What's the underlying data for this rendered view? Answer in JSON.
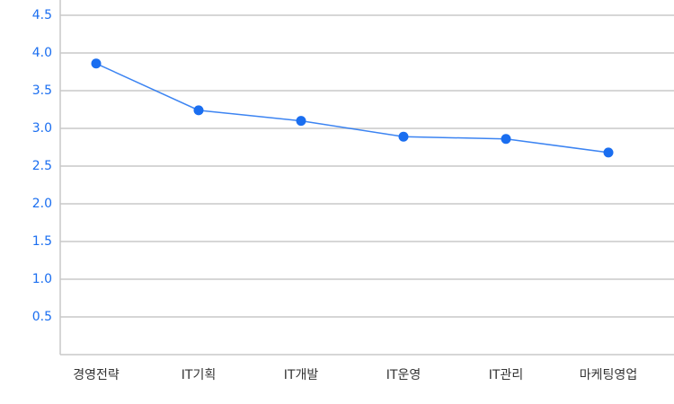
{
  "chart_data": {
    "type": "line",
    "categories": [
      "경영전략",
      "IT기획",
      "IT개발",
      "IT운영",
      "IT관리",
      "마케팅영업"
    ],
    "series": [
      {
        "color": "#1a6ef0",
        "values": [
          3.86,
          3.24,
          3.1,
          2.89,
          2.86,
          2.68
        ]
      }
    ],
    "ylim": [
      0,
      4.5
    ],
    "yticks": [
      0.5,
      {
        "value": 1,
        "label": "1.0"
      },
      1.5,
      {
        "value": 2,
        "label": "2.0"
      },
      2.5,
      {
        "value": 3,
        "label": "3.0"
      },
      3.5,
      {
        "value": 4,
        "label": "4.0"
      },
      4.5
    ],
    "grid": true
  }
}
